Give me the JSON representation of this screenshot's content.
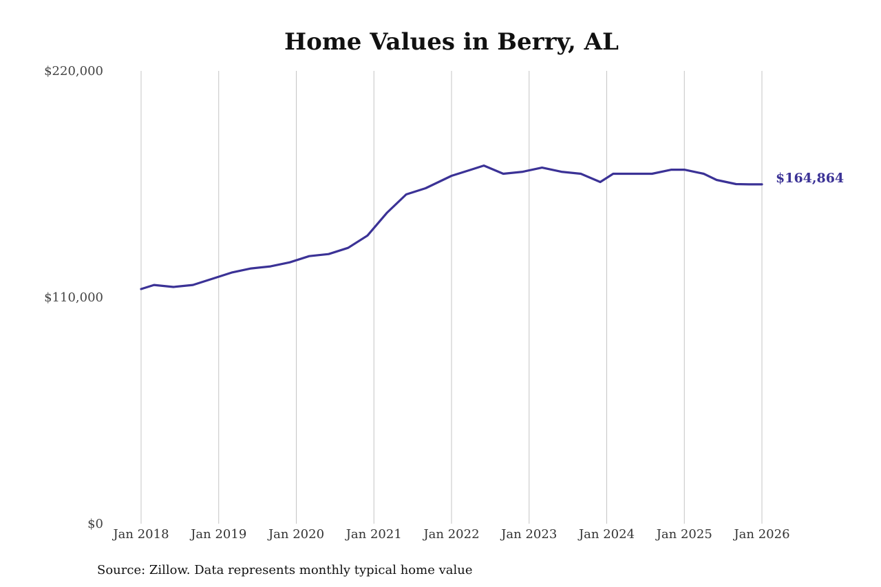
{
  "chart_data": {
    "type": "line",
    "title": "Home Values in Berry, AL",
    "ylim": [
      0,
      220000
    ],
    "y_ticks": [
      0,
      110000,
      220000
    ],
    "y_tick_labels": [
      "$0",
      "$110,000",
      "$220,000"
    ],
    "x_range": [
      "2018-01",
      "2026-01"
    ],
    "x_ticks": [
      "2018-01",
      "2019-01",
      "2020-01",
      "2021-01",
      "2022-01",
      "2023-01",
      "2024-01",
      "2025-01",
      "2026-01"
    ],
    "x_tick_labels": [
      "Jan 2018",
      "Jan 2019",
      "Jan 2020",
      "Jan 2021",
      "Jan 2022",
      "Jan 2023",
      "Jan 2024",
      "Jan 2025",
      "Jan 2026"
    ],
    "grid": "vertical",
    "line_color": "#3b3296",
    "end_label": "$164,864",
    "source": "Source: Zillow. Data represents monthly typical home value",
    "series": [
      {
        "x": [
          "2018-01",
          "2018-03",
          "2018-06",
          "2018-09",
          "2018-12",
          "2019-03",
          "2019-06",
          "2019-09",
          "2019-12",
          "2020-03",
          "2020-06",
          "2020-09",
          "2020-12",
          "2021-03",
          "2021-06",
          "2021-07",
          "2021-09",
          "2021-11",
          "2022-01",
          "2022-04",
          "2022-06",
          "2022-09",
          "2022-12",
          "2023-03",
          "2023-06",
          "2023-09",
          "2023-12",
          "2024-02",
          "2024-05",
          "2024-08",
          "2024-11",
          "2025-01",
          "2025-04",
          "2025-06",
          "2025-09",
          "2025-11",
          "2026-01"
        ],
        "values": [
          114000,
          116000,
          115000,
          116000,
          119000,
          122000,
          124000,
          125000,
          127000,
          130000,
          131000,
          134000,
          140000,
          151000,
          160000,
          161000,
          163000,
          166000,
          169000,
          172000,
          174000,
          170000,
          171000,
          173000,
          171000,
          170000,
          166000,
          170000,
          170000,
          170000,
          172000,
          172000,
          170000,
          167000,
          165000,
          164864,
          164864
        ]
      }
    ]
  }
}
